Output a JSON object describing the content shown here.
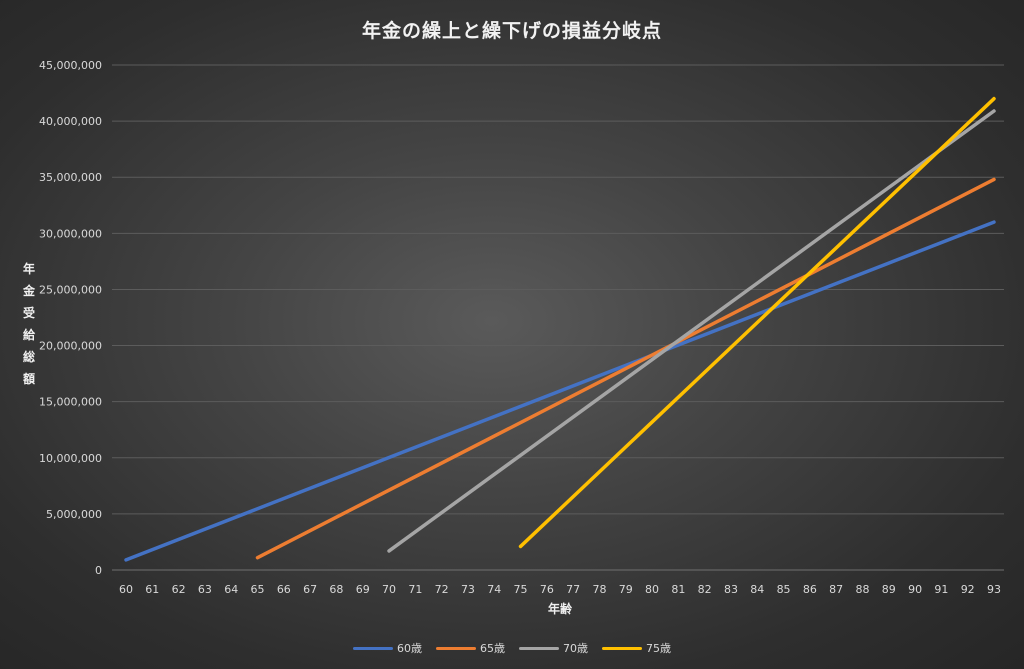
{
  "chart_data": {
    "type": "line",
    "title": "年金の繰上と繰下げの損益分岐点",
    "xlabel": "年齢",
    "ylabel": "年金受給総額",
    "xlim": [
      60,
      93
    ],
    "ylim": [
      0,
      45000000
    ],
    "x_ticks": [
      "60",
      "61",
      "62",
      "63",
      "64",
      "65",
      "66",
      "67",
      "68",
      "69",
      "70",
      "71",
      "72",
      "73",
      "74",
      "75",
      "76",
      "77",
      "78",
      "79",
      "80",
      "81",
      "82",
      "83",
      "84",
      "85",
      "86",
      "87",
      "88",
      "89",
      "90",
      "91",
      "92",
      "93"
    ],
    "y_ticks": [
      "0",
      "5,000,000",
      "10,000,000",
      "15,000,000",
      "20,000,000",
      "25,000,000",
      "30,000,000",
      "35,000,000",
      "40,000,000",
      "45,000,000"
    ],
    "y_tick_values": [
      0,
      5000000,
      10000000,
      15000000,
      20000000,
      25000000,
      30000000,
      35000000,
      40000000,
      45000000
    ],
    "grid": true,
    "legend_position": "bottom",
    "series": [
      {
        "name": "60歳",
        "color": "#4472c4",
        "x_start": 60,
        "y_start": 900000,
        "x_end": 93,
        "y_end": 31000000
      },
      {
        "name": "65歳",
        "color": "#ed7d31",
        "x_start": 65,
        "y_start": 1100000,
        "x_end": 93,
        "y_end": 34800000
      },
      {
        "name": "70歳",
        "color": "#a5a5a5",
        "x_start": 70,
        "y_start": 1700000,
        "x_end": 93,
        "y_end": 40900000
      },
      {
        "name": "75歳",
        "color": "#ffc000",
        "x_start": 75,
        "y_start": 2100000,
        "x_end": 93,
        "y_end": 42000000
      }
    ]
  }
}
